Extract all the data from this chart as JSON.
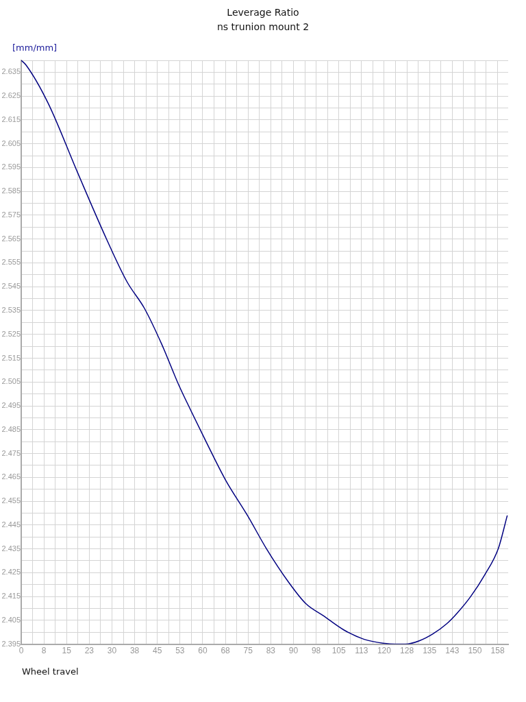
{
  "chart_data": {
    "type": "line",
    "title": "Leverage Ratio",
    "subtitle": "ns trunion mount 2",
    "xlabel": "Wheel travel",
    "ylabel": "[mm/mm]",
    "x": [
      0,
      1.6,
      8.9,
      18.6,
      28.2,
      35.0,
      40.7,
      46.4,
      52.0,
      56.1,
      61.1,
      67.5,
      74.8,
      81.1,
      88.4,
      94.1,
      99.8,
      106.6,
      113.4,
      120.2,
      123.6,
      127.0,
      131.6,
      136.1,
      140.7,
      144.1,
      148.6,
      153.2,
      157.7,
      160.7
    ],
    "series": [
      {
        "color": "#000080",
        "values": [
          2.64,
          2.638,
          2.622,
          2.593,
          2.565,
          2.547,
          2.536,
          2.521,
          2.504,
          2.493,
          2.48,
          2.464,
          2.449,
          2.435,
          2.421,
          2.412,
          2.407,
          2.401,
          2.397,
          2.3953,
          2.395,
          2.395,
          2.3964,
          2.3993,
          2.4036,
          2.408,
          2.415,
          2.424,
          2.435,
          2.449
        ]
      }
    ],
    "xlim": [
      0,
      161
    ],
    "ylim": [
      2.395,
      2.64
    ],
    "xticks": [
      0,
      {
        "value": 3.75,
        "label": null
      },
      {
        "value": 7.5,
        "label": "8"
      },
      {
        "value": 11.25,
        "label": null
      },
      15,
      {
        "value": 18.75,
        "label": null
      },
      {
        "value": 22.5,
        "label": "23"
      },
      {
        "value": 26.25,
        "label": null
      },
      30,
      {
        "value": 33.75,
        "label": null
      },
      {
        "value": 37.5,
        "label": "38"
      },
      {
        "value": 41.25,
        "label": null
      },
      45,
      {
        "value": 48.75,
        "label": null
      },
      {
        "value": 52.5,
        "label": "53"
      },
      {
        "value": 56.25,
        "label": null
      },
      60,
      {
        "value": 63.75,
        "label": null
      },
      {
        "value": 67.5,
        "label": "68"
      },
      {
        "value": 71.25,
        "label": null
      },
      75,
      {
        "value": 78.75,
        "label": null
      },
      {
        "value": 82.5,
        "label": "83"
      },
      {
        "value": 86.25,
        "label": null
      },
      90,
      {
        "value": 93.75,
        "label": null
      },
      {
        "value": 97.5,
        "label": "98"
      },
      {
        "value": 101.25,
        "label": null
      },
      105,
      {
        "value": 108.75,
        "label": null
      },
      {
        "value": 112.5,
        "label": "113"
      },
      {
        "value": 116.25,
        "label": null
      },
      120,
      {
        "value": 123.75,
        "label": null
      },
      {
        "value": 127.5,
        "label": "128"
      },
      {
        "value": 131.25,
        "label": null
      },
      135,
      {
        "value": 138.75,
        "label": null
      },
      {
        "value": 142.5,
        "label": "143"
      },
      {
        "value": 146.25,
        "label": null
      },
      150,
      {
        "value": 153.75,
        "label": null
      },
      {
        "value": 157.5,
        "label": "158"
      }
    ],
    "yticks": [
      2.395,
      {
        "value": 2.4,
        "label": null
      },
      2.405,
      {
        "value": 2.41,
        "label": null
      },
      2.415,
      {
        "value": 2.42,
        "label": null
      },
      2.425,
      {
        "value": 2.43,
        "label": null
      },
      2.435,
      {
        "value": 2.44,
        "label": null
      },
      2.445,
      {
        "value": 2.45,
        "label": null
      },
      2.455,
      {
        "value": 2.46,
        "label": null
      },
      2.465,
      {
        "value": 2.47,
        "label": null
      },
      2.475,
      {
        "value": 2.48,
        "label": null
      },
      2.485,
      {
        "value": 2.49,
        "label": null
      },
      2.495,
      {
        "value": 2.5,
        "label": null
      },
      2.505,
      {
        "value": 2.51,
        "label": null
      },
      2.515,
      {
        "value": 2.52,
        "label": null
      },
      2.525,
      {
        "value": 2.53,
        "label": null
      },
      2.535,
      {
        "value": 2.54,
        "label": null
      },
      2.545,
      {
        "value": 2.55,
        "label": null
      },
      2.555,
      {
        "value": 2.56,
        "label": null
      },
      2.565,
      {
        "value": 2.57,
        "label": null
      },
      2.575,
      {
        "value": 2.58,
        "label": null
      },
      2.585,
      {
        "value": 2.59,
        "label": null
      },
      2.595,
      {
        "value": 2.6,
        "label": null
      },
      2.605,
      {
        "value": 2.61,
        "label": null
      },
      2.615,
      {
        "value": 2.62,
        "label": null
      },
      2.625,
      {
        "value": 2.63,
        "label": null
      },
      2.635,
      {
        "value": 2.64,
        "label": null
      }
    ],
    "grid": true,
    "marker": "none",
    "line_style": "solid",
    "legend": false
  }
}
